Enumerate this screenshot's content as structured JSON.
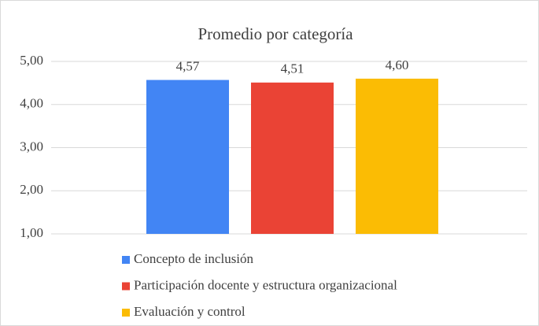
{
  "chart_data": {
    "type": "bar",
    "title": "Promedio por categoría",
    "categories": [
      null
    ],
    "series": [
      {
        "name": "Concepto de inclusión",
        "color": "#4285f4",
        "values": [
          4.57
        ],
        "value_labels": [
          "4,57"
        ]
      },
      {
        "name": "Participación docente y estructura organizacional",
        "color": "#ea4335",
        "values": [
          4.51
        ],
        "value_labels": [
          "4,51"
        ]
      },
      {
        "name": "Evaluación y control",
        "color": "#fbbc04",
        "values": [
          4.6
        ],
        "value_labels": [
          "4,60"
        ]
      }
    ],
    "ylim": [
      1,
      5
    ],
    "yticks": [
      {
        "value": 1,
        "label": "1,00"
      },
      {
        "value": 2,
        "label": "2,00"
      },
      {
        "value": 3,
        "label": "3,00"
      },
      {
        "value": 4,
        "label": "4,00"
      },
      {
        "value": 5,
        "label": "5,00"
      }
    ],
    "grid": true,
    "legend": "bottom"
  }
}
